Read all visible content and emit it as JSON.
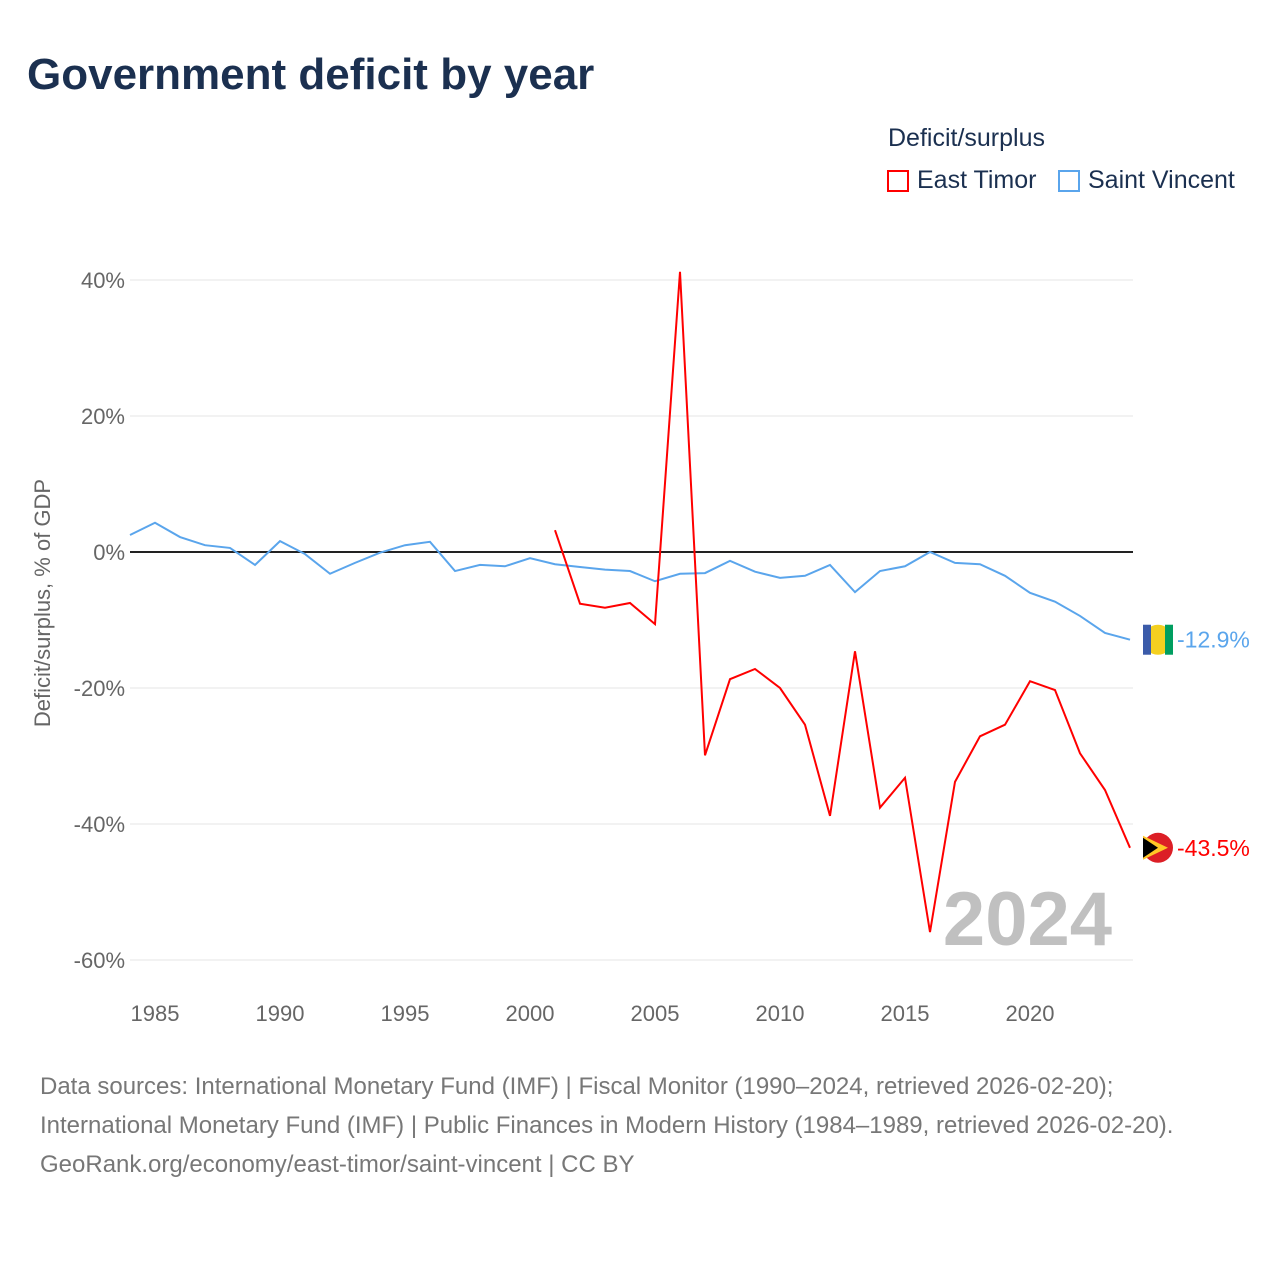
{
  "title": "Government deficit by year",
  "chart_data": {
    "type": "line",
    "title": "Government deficit by year",
    "ylabel": "Deficit/surplus, % of GDP",
    "xlabel": "",
    "legend_title": "Deficit/surplus",
    "legend_position": "top-right",
    "xlim": [
      1984,
      2024
    ],
    "ylim": [
      -63,
      45
    ],
    "yticks": [
      40,
      20,
      0,
      -20,
      -40,
      -60
    ],
    "ytick_labels": [
      "40%",
      "20%",
      "0%",
      "-20%",
      "-40%",
      "-60%"
    ],
    "xticks": [
      1985,
      1990,
      1995,
      2000,
      2005,
      2010,
      2015,
      2020
    ],
    "xtick_labels": [
      "1985",
      "1990",
      "1995",
      "2000",
      "2005",
      "2010",
      "2015",
      "2020"
    ],
    "grid": true,
    "year_label": "2024",
    "series": [
      {
        "name": "East Timor",
        "color": "#ff0000",
        "end_label": "-43.5%",
        "x_start": 2001,
        "values": [
          3.2,
          -7.6,
          -8.2,
          -7.5,
          -10.6,
          41.2,
          -29.9,
          -18.7,
          -17.2,
          -20.0,
          -25.4,
          -38.8,
          -14.6,
          -37.6,
          -33.2,
          -55.9,
          -33.8,
          -27.1,
          -25.4,
          -19.0,
          -20.3,
          -29.6,
          -35.0,
          -43.5
        ]
      },
      {
        "name": "Saint Vincent",
        "color": "#5aa5ec",
        "end_label": "-12.9%",
        "x_start": 1984,
        "values": [
          2.5,
          4.3,
          2.2,
          1.0,
          0.6,
          -1.9,
          1.6,
          -0.3,
          -3.2,
          -1.6,
          -0.1,
          1.0,
          1.5,
          -2.8,
          -1.9,
          -2.1,
          -0.9,
          -1.8,
          -2.2,
          -2.6,
          -2.8,
          -4.3,
          -3.2,
          -3.1,
          -1.3,
          -2.9,
          -3.8,
          -3.5,
          -1.9,
          -5.9,
          -2.8,
          -2.1,
          0.0,
          -1.6,
          -1.8,
          -3.5,
          -6.0,
          -7.3,
          -9.4,
          -11.9,
          -12.9
        ]
      }
    ]
  },
  "sources": {
    "line1": "Data sources: International Monetary Fund (IMF) | Fiscal Monitor (1990–2024, retrieved 2026-02-20); International Monetary Fund (IMF) | Public Finances in Modern History (1984–1989, retrieved 2026-02-20).",
    "line2": "GeoRank.org/economy/east-timor/saint-vincent | CC BY"
  }
}
